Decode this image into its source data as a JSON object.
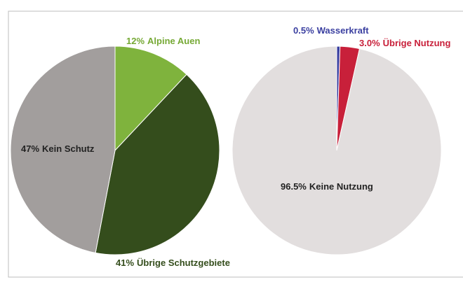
{
  "chart_data": [
    {
      "type": "pie",
      "categories": [
        "Alpine Auen",
        "Übrige Schutzgebiete",
        "Kein Schutz"
      ],
      "values": [
        12,
        41,
        47
      ],
      "value_labels": [
        "12%",
        "41%",
        "47%"
      ],
      "colors": [
        "#7fb33d",
        "#344d1c",
        "#a29e9d"
      ],
      "label_colors": [
        "#76a935",
        "#344d1c",
        "#222222"
      ]
    },
    {
      "type": "pie",
      "categories": [
        "Wasserkraft",
        "Übrige Nutzung",
        "Keine Nutzung"
      ],
      "values": [
        0.5,
        3.0,
        96.5
      ],
      "value_labels": [
        "0.5%",
        "3.0%",
        "96.5%"
      ],
      "colors": [
        "#3a3fa0",
        "#c8203a",
        "#e2dede"
      ],
      "label_colors": [
        "#3a3fa0",
        "#c8203a",
        "#222222"
      ]
    }
  ]
}
